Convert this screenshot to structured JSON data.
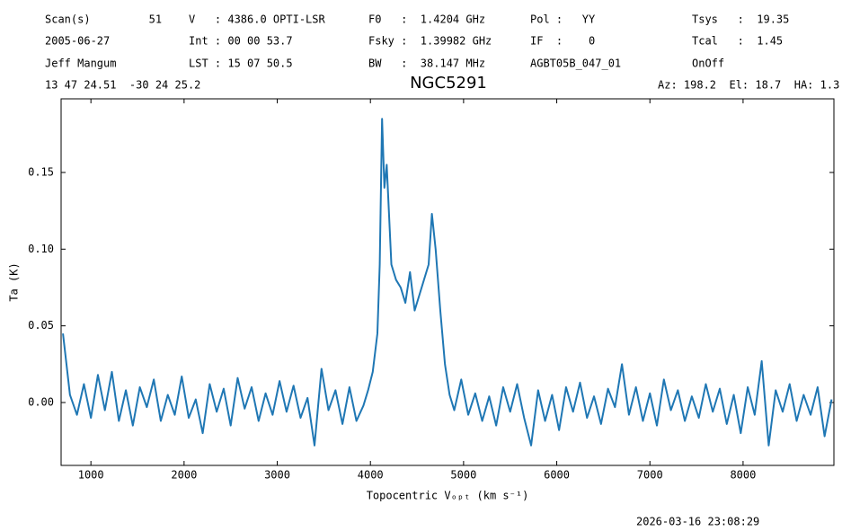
{
  "chart_data": {
    "type": "line",
    "title": "NGC5291",
    "annotations": [
      "Scan(s)         51",
      "V   : 4386.0 OPTI-LSR",
      "F0   :  1.4204 GHz",
      "Pol :   YY",
      "Tsys   :  19.35",
      "2005-06-27",
      "Int : 00 00 53.7",
      "Fsky :  1.39982 GHz",
      "IF  :    0",
      "Tcal   :  1.45",
      "Jeff Mangum",
      "LST : 15 07 50.5",
      "BW   :  38.147 MHz",
      "AGBT05B_047_01",
      "OnOff",
      "13 47 24.51  -30 24 25.2",
      "Az: 198.2  El: 18.7  HA: 1.3"
    ],
    "timestamp": "2026-03-16 23:08:29",
    "xlabel": "Topocentric Vₒₚₜ (km s⁻¹)",
    "ylabel": "Ta (K)",
    "x": [
      700,
      775,
      850,
      925,
      1000,
      1075,
      1150,
      1225,
      1300,
      1375,
      1450,
      1525,
      1600,
      1675,
      1750,
      1825,
      1900,
      1975,
      2050,
      2125,
      2200,
      2275,
      2350,
      2425,
      2500,
      2575,
      2650,
      2725,
      2800,
      2875,
      2950,
      3025,
      3100,
      3175,
      3250,
      3325,
      3400,
      3475,
      3550,
      3625,
      3700,
      3775,
      3850,
      3925,
      3975,
      4025,
      4075,
      4100,
      4125,
      4150,
      4175,
      4225,
      4275,
      4325,
      4375,
      4425,
      4475,
      4525,
      4575,
      4625,
      4660,
      4700,
      4750,
      4800,
      4850,
      4900,
      4975,
      5050,
      5125,
      5200,
      5275,
      5350,
      5425,
      5500,
      5575,
      5650,
      5725,
      5800,
      5875,
      5950,
      6025,
      6100,
      6175,
      6250,
      6325,
      6400,
      6475,
      6550,
      6625,
      6700,
      6775,
      6850,
      6925,
      7000,
      7075,
      7150,
      7225,
      7300,
      7375,
      7450,
      7525,
      7600,
      7675,
      7750,
      7825,
      7900,
      7975,
      8050,
      8125,
      8200,
      8275,
      8350,
      8425,
      8500,
      8575,
      8650,
      8725,
      8800,
      8875,
      8950
    ],
    "series": [
      {
        "name": "Ta",
        "color": "#1f77b4",
        "values": [
          0.045,
          0.005,
          -0.008,
          0.012,
          -0.01,
          0.018,
          -0.005,
          0.02,
          -0.012,
          0.008,
          -0.015,
          0.01,
          -0.003,
          0.015,
          -0.012,
          0.005,
          -0.008,
          0.017,
          -0.01,
          0.002,
          -0.02,
          0.012,
          -0.006,
          0.009,
          -0.015,
          0.016,
          -0.004,
          0.01,
          -0.012,
          0.006,
          -0.008,
          0.014,
          -0.006,
          0.011,
          -0.01,
          0.003,
          -0.028,
          0.022,
          -0.005,
          0.008,
          -0.014,
          0.01,
          -0.012,
          -0.002,
          0.008,
          0.02,
          0.045,
          0.09,
          0.185,
          0.14,
          0.155,
          0.09,
          0.08,
          0.075,
          0.065,
          0.085,
          0.06,
          0.07,
          0.08,
          0.09,
          0.123,
          0.1,
          0.06,
          0.025,
          0.005,
          -0.005,
          0.015,
          -0.008,
          0.006,
          -0.012,
          0.004,
          -0.015,
          0.01,
          -0.006,
          0.012,
          -0.01,
          -0.028,
          0.008,
          -0.012,
          0.005,
          -0.018,
          0.01,
          -0.006,
          0.013,
          -0.01,
          0.004,
          -0.014,
          0.009,
          -0.003,
          0.025,
          -0.008,
          0.01,
          -0.012,
          0.006,
          -0.015,
          0.015,
          -0.005,
          0.008,
          -0.012,
          0.004,
          -0.01,
          0.012,
          -0.006,
          0.009,
          -0.014,
          0.005,
          -0.02,
          0.01,
          -0.008,
          0.027,
          -0.028,
          0.008,
          -0.006,
          0.012,
          -0.012,
          0.005,
          -0.008,
          0.01,
          -0.022,
          0.002
        ]
      }
    ],
    "xlim": [
      680,
      8975
    ],
    "ylim": [
      -0.041,
      0.198
    ],
    "xticks": [
      1000,
      2000,
      3000,
      4000,
      5000,
      6000,
      7000,
      8000
    ],
    "yticks": [
      {
        "value": 0,
        "label": "0.00"
      },
      {
        "value": 0.05,
        "label": "0.05"
      },
      {
        "value": 0.1,
        "label": "0.10"
      },
      {
        "value": 0.15,
        "label": "0.15"
      }
    ],
    "grid": false
  }
}
